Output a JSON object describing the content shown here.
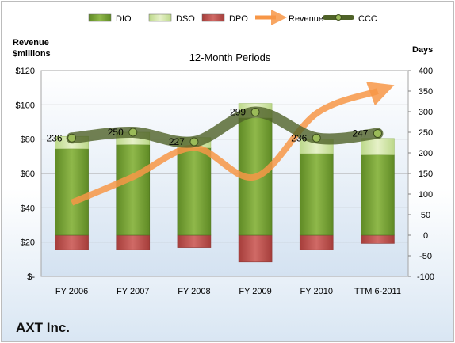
{
  "company": "AXT Inc.",
  "chart_data": {
    "type": "bar",
    "title": "12-Month Periods",
    "ylabel_left": [
      "Revenue",
      "$millions"
    ],
    "ylabel_right": "Days",
    "categories": [
      "FY 2006",
      "FY 2007",
      "FY 2008",
      "FY 2009",
      "FY 2010",
      "TTM 6-2011"
    ],
    "left_ticks": [
      "$-",
      "$20",
      "$40",
      "$60",
      "$80",
      "$100",
      "$120"
    ],
    "left_ylim": [
      0,
      120
    ],
    "right_ticks": [
      "-100",
      "-50",
      "0",
      "50",
      "100",
      "150",
      "200",
      "250",
      "300",
      "350",
      "400"
    ],
    "right_ylim": [
      -100,
      400
    ],
    "legend_position": "top",
    "legend": [
      "DIO",
      "DSO",
      "DPO",
      "Revenue",
      "CCC"
    ],
    "colors": {
      "DIO": "#77a032",
      "DSO": "#d3e5a2",
      "DPO": "#c0504d",
      "Revenue": "#f79646",
      "CCC": "#4f6228"
    },
    "series": [
      {
        "name": "DIO",
        "axis": "right",
        "values": [
          210,
          220,
          212,
          285,
          198,
          195
        ]
      },
      {
        "name": "DSO",
        "axis": "right",
        "values": [
          30,
          30,
          25,
          35,
          35,
          40
        ]
      },
      {
        "name": "DPO",
        "axis": "right",
        "values": [
          -35,
          -35,
          -30,
          -65,
          -35,
          -20
        ]
      },
      {
        "name": "Revenue",
        "axis": "left",
        "values": [
          43,
          58,
          75,
          58,
          95,
          108
        ]
      },
      {
        "name": "CCC",
        "axis": "right",
        "values": [
          236,
          250,
          227,
          299,
          236,
          247
        ],
        "data_labels": [
          "236",
          "250",
          "227",
          "299",
          "236",
          "247"
        ]
      }
    ]
  }
}
